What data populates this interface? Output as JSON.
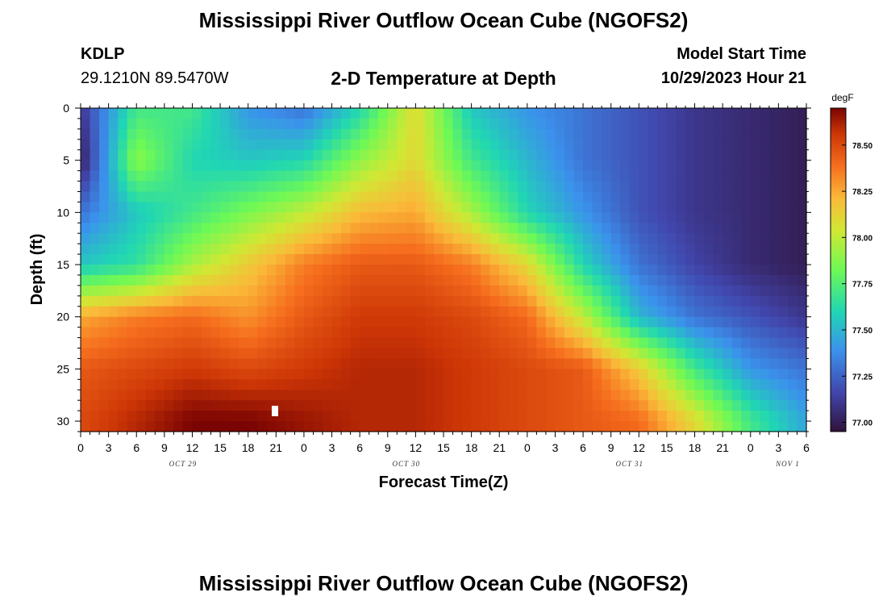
{
  "header": {
    "title": "Mississippi River Outflow Ocean Cube (NGOFS2)",
    "station": "KDLP",
    "coords": "29.1210N  89.5470W",
    "subtitle": "2-D Temperature at Depth",
    "model_start_label": "Model Start Time",
    "model_start_value": "10/29/2023 Hour 21"
  },
  "footer": {
    "title": "Mississippi River Outflow Ocean Cube (NGOFS2)"
  },
  "chart_data": {
    "type": "heatmap",
    "title": "2-D Temperature at Depth",
    "xlabel": "Forecast Time(Z)",
    "ylabel": "Depth (ft)",
    "x_ticks": [
      "0",
      "3",
      "6",
      "9",
      "12",
      "15",
      "18",
      "21",
      "0",
      "3",
      "6",
      "9",
      "12",
      "15",
      "18",
      "21",
      "0",
      "3",
      "6",
      "9",
      "12",
      "15",
      "18",
      "21",
      "0",
      "3",
      "6"
    ],
    "x_range_hours": [
      0,
      78
    ],
    "day_labels": [
      {
        "label": "OCT 29",
        "hour": 11
      },
      {
        "label": "OCT 30",
        "hour": 35
      },
      {
        "label": "OCT 31",
        "hour": 59
      },
      {
        "label": "NOV 1",
        "hour": 76
      }
    ],
    "y_ticks": [
      0,
      5,
      10,
      15,
      20,
      25,
      30
    ],
    "ylim": [
      0,
      31
    ],
    "y_inverted": true,
    "colorbar": {
      "unit": "degF",
      "min": 76.95,
      "max": 78.7,
      "ticks": [
        "77.00",
        "77.25",
        "77.50",
        "77.75",
        "78.00",
        "78.25",
        "78.50"
      ]
    },
    "grid": {
      "hours": [
        0,
        6,
        12,
        18,
        24,
        30,
        36,
        42,
        48,
        54,
        60,
        66,
        72,
        78
      ],
      "depths": [
        0,
        5,
        10,
        15,
        20,
        25,
        30
      ],
      "temperature_degF": [
        [
          77.1,
          77.7,
          77.7,
          77.4,
          77.3,
          77.6,
          78.1,
          77.55,
          77.4,
          77.3,
          77.2,
          77.1,
          77.05,
          77.0
        ],
        [
          77.0,
          77.9,
          77.6,
          77.55,
          77.6,
          77.9,
          78.1,
          77.7,
          77.5,
          77.3,
          77.2,
          77.1,
          77.05,
          77.0
        ],
        [
          77.3,
          77.55,
          77.7,
          77.85,
          78.0,
          78.2,
          78.25,
          77.95,
          77.6,
          77.4,
          77.2,
          77.1,
          77.05,
          77.0
        ],
        [
          77.55,
          77.65,
          77.95,
          78.15,
          78.35,
          78.45,
          78.45,
          78.35,
          78.1,
          77.6,
          77.3,
          77.15,
          77.05,
          77.0
        ],
        [
          78.25,
          78.35,
          78.4,
          78.3,
          78.45,
          78.55,
          78.55,
          78.5,
          78.4,
          78.0,
          77.5,
          77.3,
          77.2,
          77.1
        ],
        [
          78.45,
          78.5,
          78.55,
          78.5,
          78.55,
          78.6,
          78.6,
          78.55,
          78.5,
          78.45,
          78.15,
          77.7,
          77.4,
          77.3
        ],
        [
          78.5,
          78.6,
          78.7,
          78.7,
          78.65,
          78.6,
          78.6,
          78.55,
          78.5,
          78.45,
          78.4,
          78.1,
          77.7,
          77.45
        ]
      ]
    }
  }
}
